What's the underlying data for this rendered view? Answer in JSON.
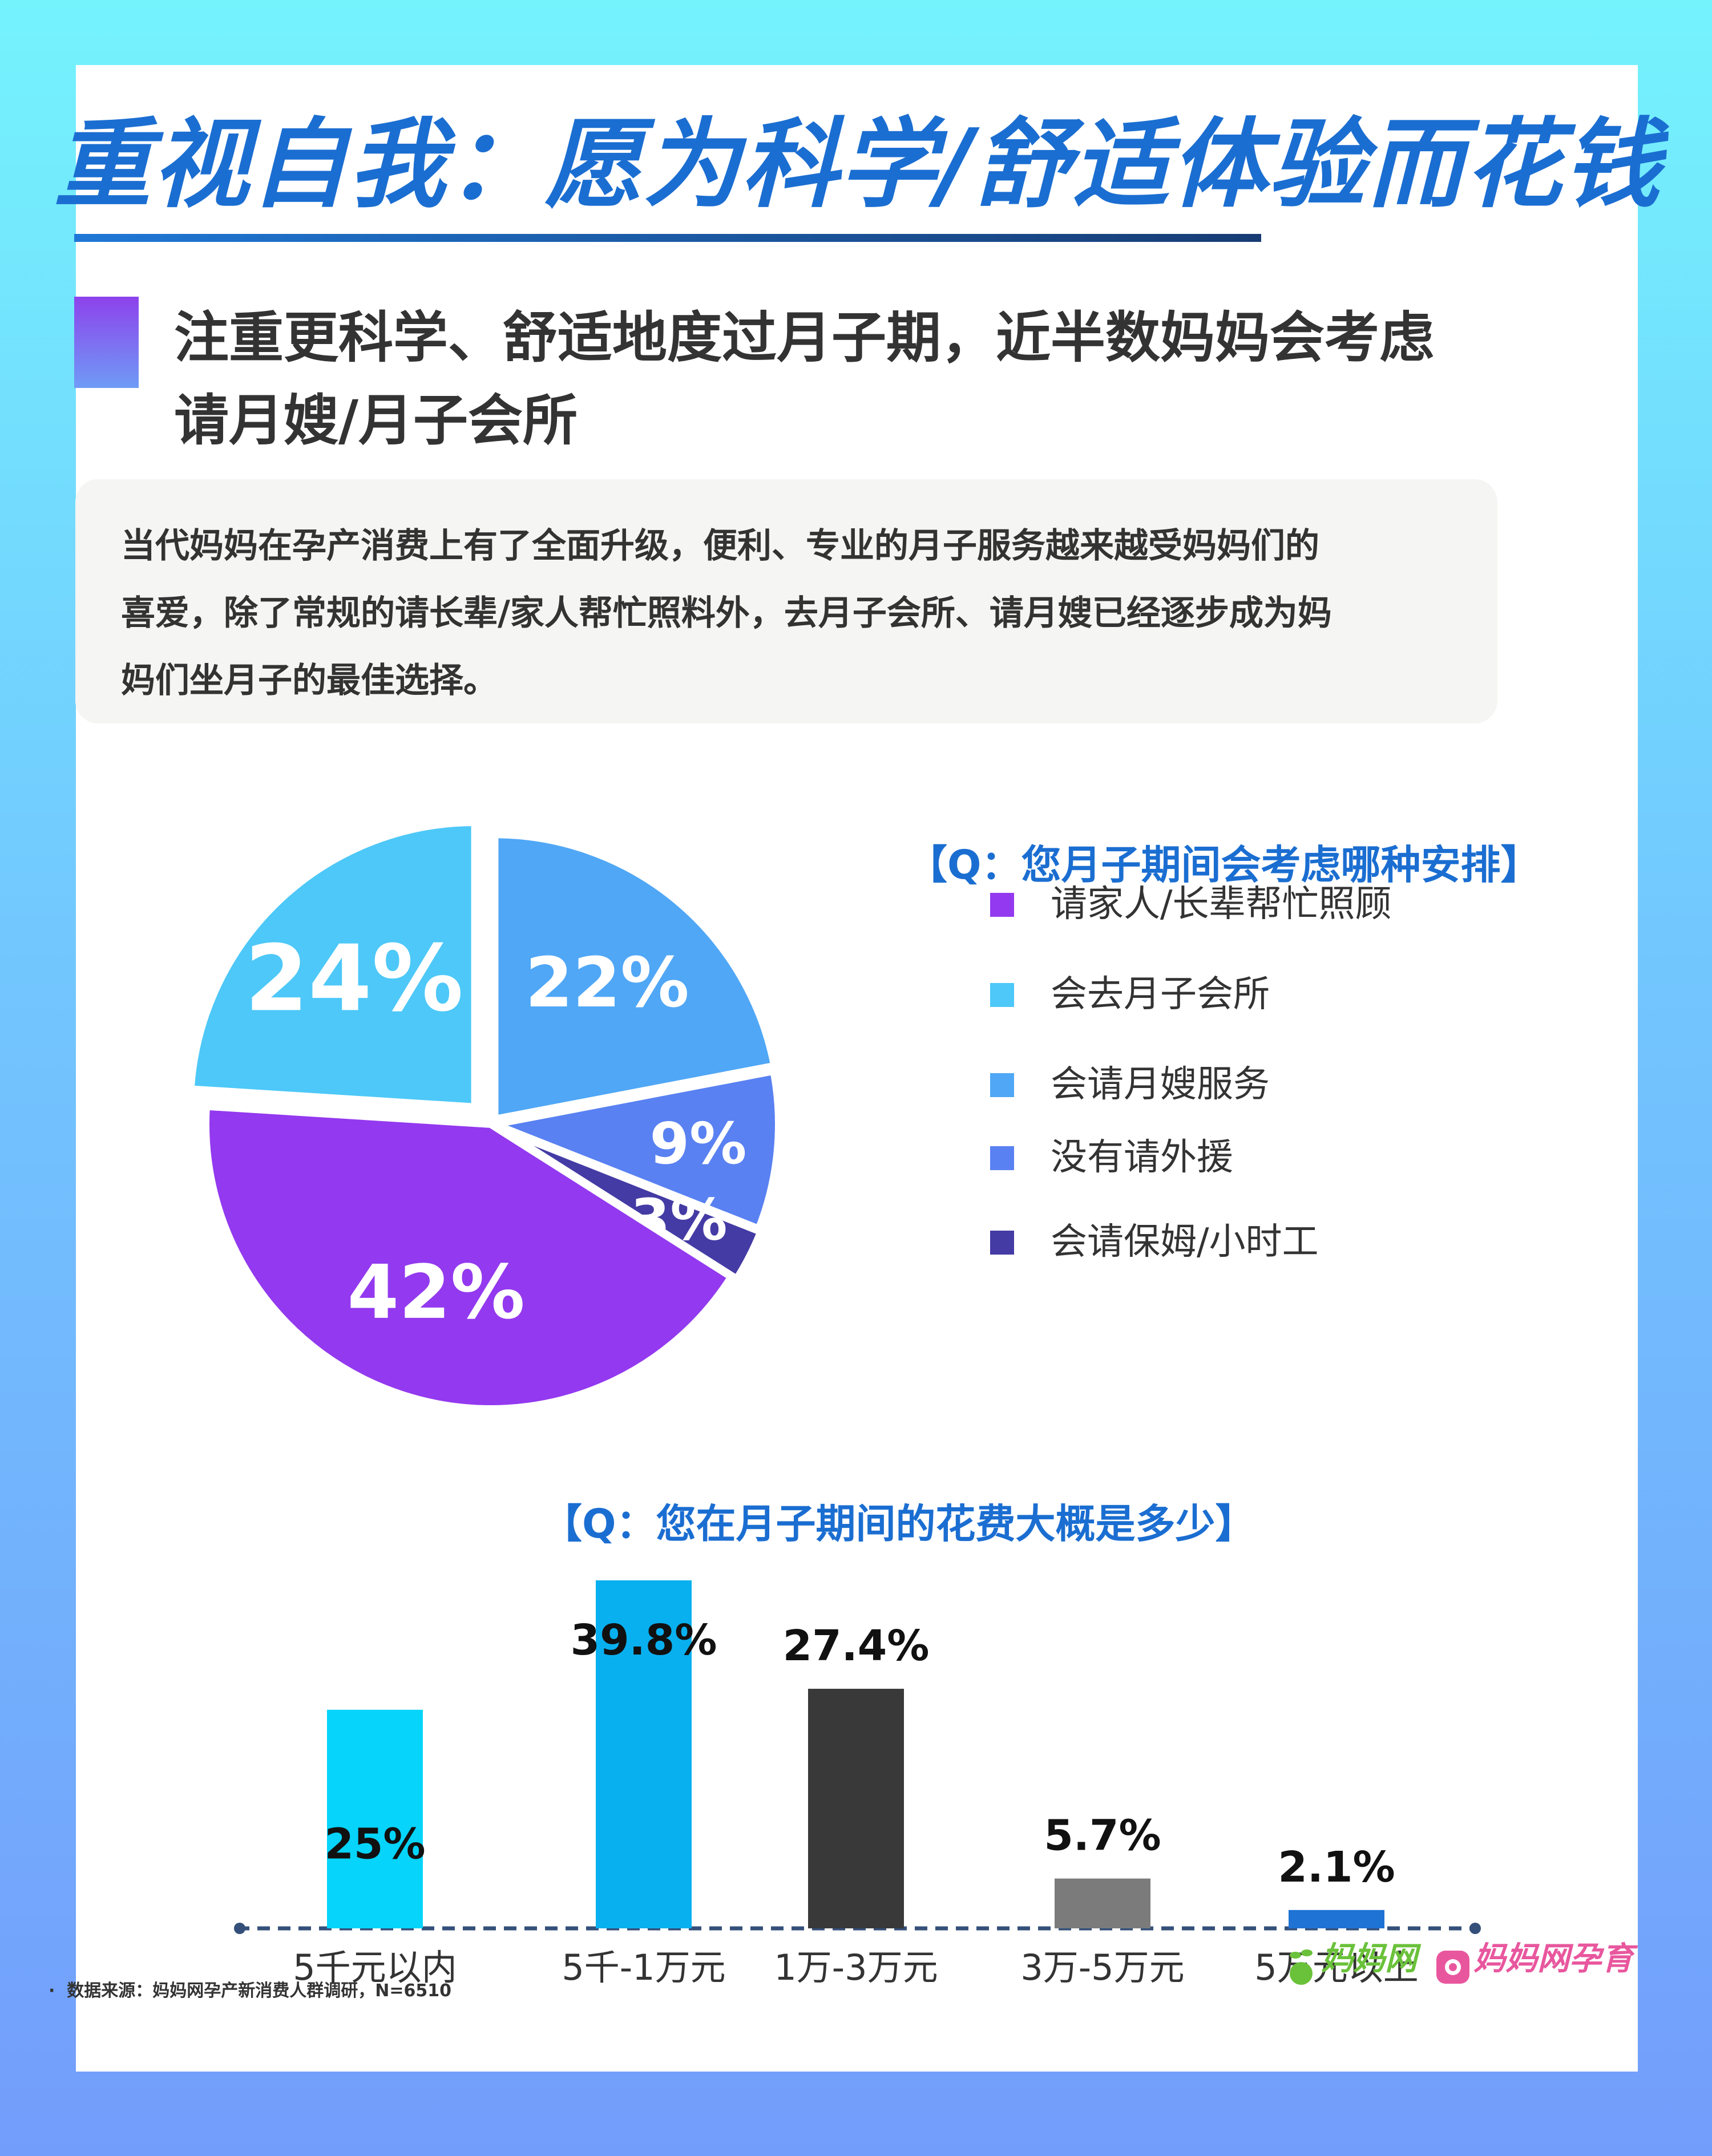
{
  "header": {
    "title": "重视自我：愿为科学/舒适体验而花钱"
  },
  "subheader": {
    "line1": "注重更科学、舒适地度过月子期，近半数妈妈会考虑",
    "line2": "请月嫂/月子会所"
  },
  "intro": {
    "line1": "当代妈妈在孕产消费上有了全面升级，便利、专业的月子服务越来越受妈妈们的",
    "line2": "喜爱，除了常规的请长辈/家人帮忙照料外，去月子会所、请月嫂已经逐步成为妈",
    "line3": "妈们坐月子的最佳选择。"
  },
  "footer": {
    "source": "数据来源：妈妈网孕产新消费人群调研，N=6510",
    "logo1": "妈妈网",
    "logo2": "妈妈网孕育",
    "bullet": "·"
  },
  "chart_data": [
    {
      "type": "pie",
      "title": "【Q：您月子期间会考虑哪种安排】",
      "slices": [
        {
          "label": "请家人/长辈帮忙照顾",
          "value": 42,
          "display": "42%",
          "color": "#9339ef"
        },
        {
          "label": "会去月子会所",
          "value": 24,
          "display": "24%",
          "color": "#4dc8f8"
        },
        {
          "label": "会请月嫂服务",
          "value": 22,
          "display": "22%",
          "color": "#50a7f6"
        },
        {
          "label": "没有请外援",
          "value": 9,
          "display": "9%",
          "color": "#5981f2"
        },
        {
          "label": "会请保姆/小时工",
          "value": 3,
          "display": "3%",
          "color": "#453ba5"
        }
      ],
      "legend_position": "right"
    },
    {
      "type": "bar",
      "title": "【Q：您在月子期间的花费大概是多少】",
      "categories": [
        "5千元以内",
        "5千-1万元",
        "1万-3万元",
        "3万-5万元",
        "5万元以上"
      ],
      "values": [
        25,
        39.8,
        27.4,
        5.7,
        2.1
      ],
      "labels": [
        "25%",
        "39.8%",
        "27.4%",
        "5.7%",
        "2.1%"
      ],
      "colors": [
        "#06d4fa",
        "#09b0ef",
        "#393939",
        "#7b7b7b",
        "#1f73d4"
      ],
      "ylim": [
        0,
        39.8
      ]
    }
  ]
}
